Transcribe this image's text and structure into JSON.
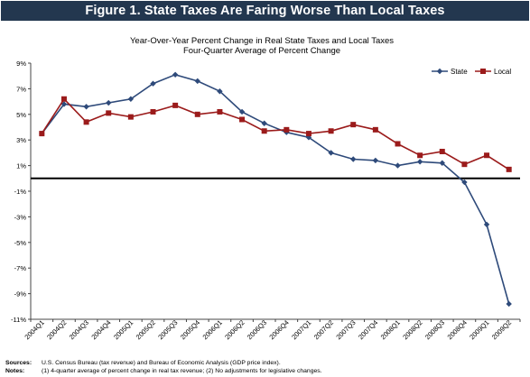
{
  "figure_title": "Figure 1. State Taxes Are Faring Worse Than Local Taxes",
  "notes": {
    "sources_label": "Sources:",
    "sources_text": "U.S. Census Bureau (tax revenue) and Bureau of Economic Analysis (GDP price index).",
    "notes_label": "Notes:",
    "notes_text": "(1) 4-quarter average of percent change in real tax revenue; (2) No adjustments for legislative changes."
  },
  "chart_data": {
    "type": "line",
    "title": "Year-Over-Year Percent Change in Real State Taxes and Local Taxes",
    "subtitle": "Four-Quarter Average of Percent Change",
    "xlabel": "",
    "ylabel": "",
    "categories": [
      "2004Q1",
      "2004Q2",
      "2004Q3",
      "2004Q4",
      "2005Q1",
      "2005Q2",
      "2005Q3",
      "2005Q4",
      "2006Q1",
      "2006Q2",
      "2006Q3",
      "2006Q4",
      "2007Q1",
      "2007Q2",
      "2007Q3",
      "2007Q4",
      "2008Q1",
      "2008Q2",
      "2008Q3",
      "2008Q4",
      "2009Q1",
      "2009Q2"
    ],
    "ylim": [
      -11,
      9
    ],
    "yticks": [
      -11,
      -9,
      -7,
      -5,
      -3,
      -1,
      1,
      3,
      5,
      7,
      9
    ],
    "ytick_labels": [
      "-11%",
      "-9%",
      "-7%",
      "-5%",
      "-3%",
      "-1%",
      "1%",
      "3%",
      "5%",
      "7%",
      "9%"
    ],
    "grid": false,
    "legend_position": "top-right",
    "series": [
      {
        "name": "State",
        "color": "#2e4a7a",
        "marker": "diamond",
        "values": [
          3.5,
          5.8,
          5.6,
          5.9,
          6.2,
          7.4,
          8.1,
          7.6,
          6.8,
          5.2,
          4.3,
          3.6,
          3.2,
          2.0,
          1.5,
          1.4,
          1.0,
          1.3,
          1.2,
          -0.3,
          -3.6,
          -9.8
        ]
      },
      {
        "name": "Local",
        "color": "#9b1b1b",
        "marker": "square",
        "values": [
          3.5,
          6.2,
          4.4,
          5.1,
          4.8,
          5.2,
          5.7,
          5.0,
          5.2,
          4.6,
          3.7,
          3.8,
          3.5,
          3.7,
          4.2,
          3.8,
          2.7,
          1.8,
          2.1,
          1.1,
          1.8,
          0.7
        ]
      }
    ]
  }
}
